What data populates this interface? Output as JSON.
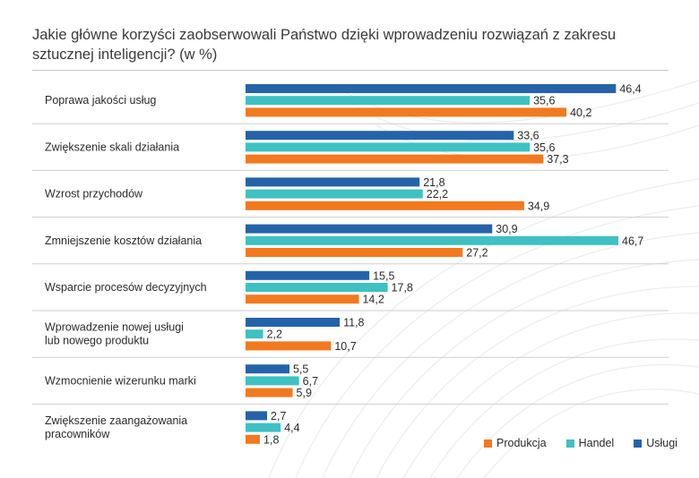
{
  "title_line1": "Jakie główne korzyści zaobserwowali Państwo dzięki wprowadzeniu rozwiązań z zakresu",
  "title_line2": "sztucznej inteligencji? (w %)",
  "chart_data": {
    "type": "bar",
    "orientation": "horizontal",
    "categories": [
      [
        "Poprawa jakości usług"
      ],
      [
        "Zwiększenie skali działania"
      ],
      [
        "Wzrost przychodów"
      ],
      [
        "Zmniejszenie kosztów działania"
      ],
      [
        "Wsparcie procesów decyzyjnych"
      ],
      [
        "Wprowadzenie nowej usługi",
        "lub nowego produktu"
      ],
      [
        "Wzmocnienie wizerunku marki"
      ],
      [
        "Zwiększenie zaangażowania",
        "pracowników"
      ]
    ],
    "series": [
      {
        "name": "Usługi",
        "color": "#2563a8",
        "values": [
          46.4,
          33.6,
          21.8,
          30.9,
          15.5,
          11.8,
          5.5,
          2.7
        ],
        "labels": [
          "46,4",
          "33,6",
          "21,8",
          "30,9",
          "15,5",
          "11,8",
          "5,5",
          "2,7"
        ]
      },
      {
        "name": "Handel",
        "color": "#3ec1c3",
        "values": [
          35.6,
          35.6,
          22.2,
          46.7,
          17.8,
          2.2,
          6.7,
          4.4
        ],
        "labels": [
          "35,6",
          "35,6",
          "22,2",
          "46,7",
          "17,8",
          "2,2",
          "6,7",
          "4,4"
        ]
      },
      {
        "name": "Produkcja",
        "color": "#f2791f",
        "values": [
          40.2,
          37.3,
          34.9,
          27.2,
          14.2,
          10.7,
          5.9,
          1.8
        ],
        "labels": [
          "40,2",
          "37,3",
          "34,9",
          "27,2",
          "14,2",
          "10,7",
          "5,9",
          "1,8"
        ]
      }
    ],
    "legend": [
      "Produkcja",
      "Handel",
      "Usługi"
    ],
    "legend_position": "bottom-right",
    "xlim": [
      0,
      50
    ],
    "grid": false
  }
}
